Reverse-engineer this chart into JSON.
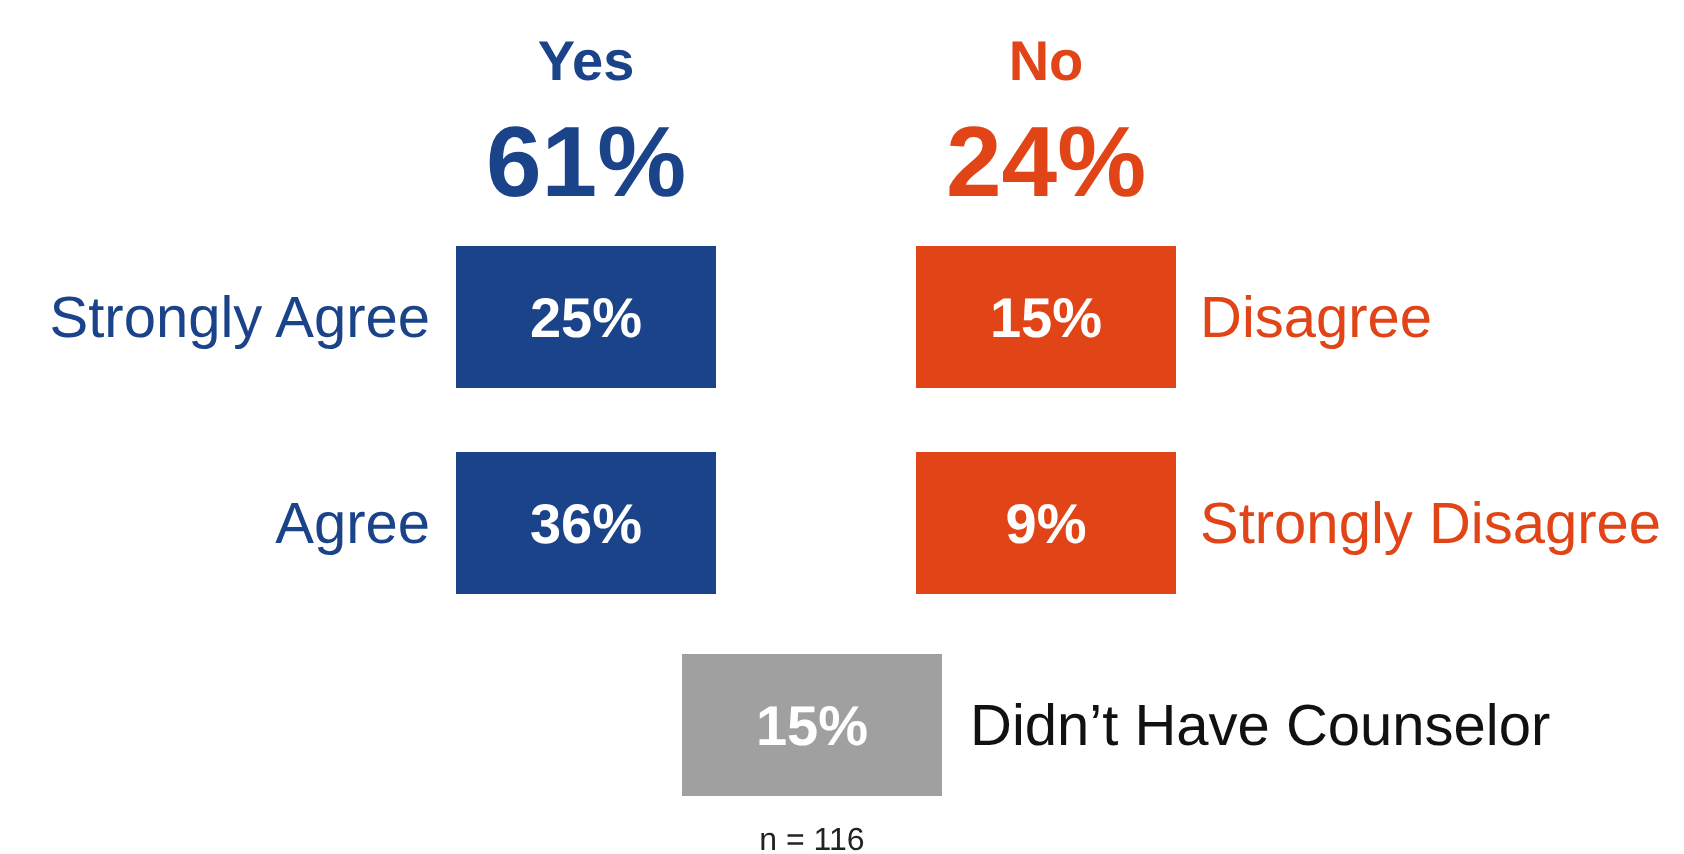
{
  "chart_data": {
    "type": "other",
    "categories": [
      "Strongly Agree",
      "Agree",
      "Disagree",
      "Strongly Disagree",
      "Didn’t Have Counselor"
    ],
    "values": [
      25,
      36,
      15,
      9,
      15
    ],
    "value_labels": [
      "25%",
      "36%",
      "15%",
      "9%",
      "15%"
    ],
    "colors": [
      "#1a4389",
      "#1a4389",
      "#e04417",
      "#e04417",
      "#a0a0a0"
    ],
    "annotations": [
      "Yes",
      "61%",
      "No",
      "24%",
      "n = 116"
    ]
  }
}
